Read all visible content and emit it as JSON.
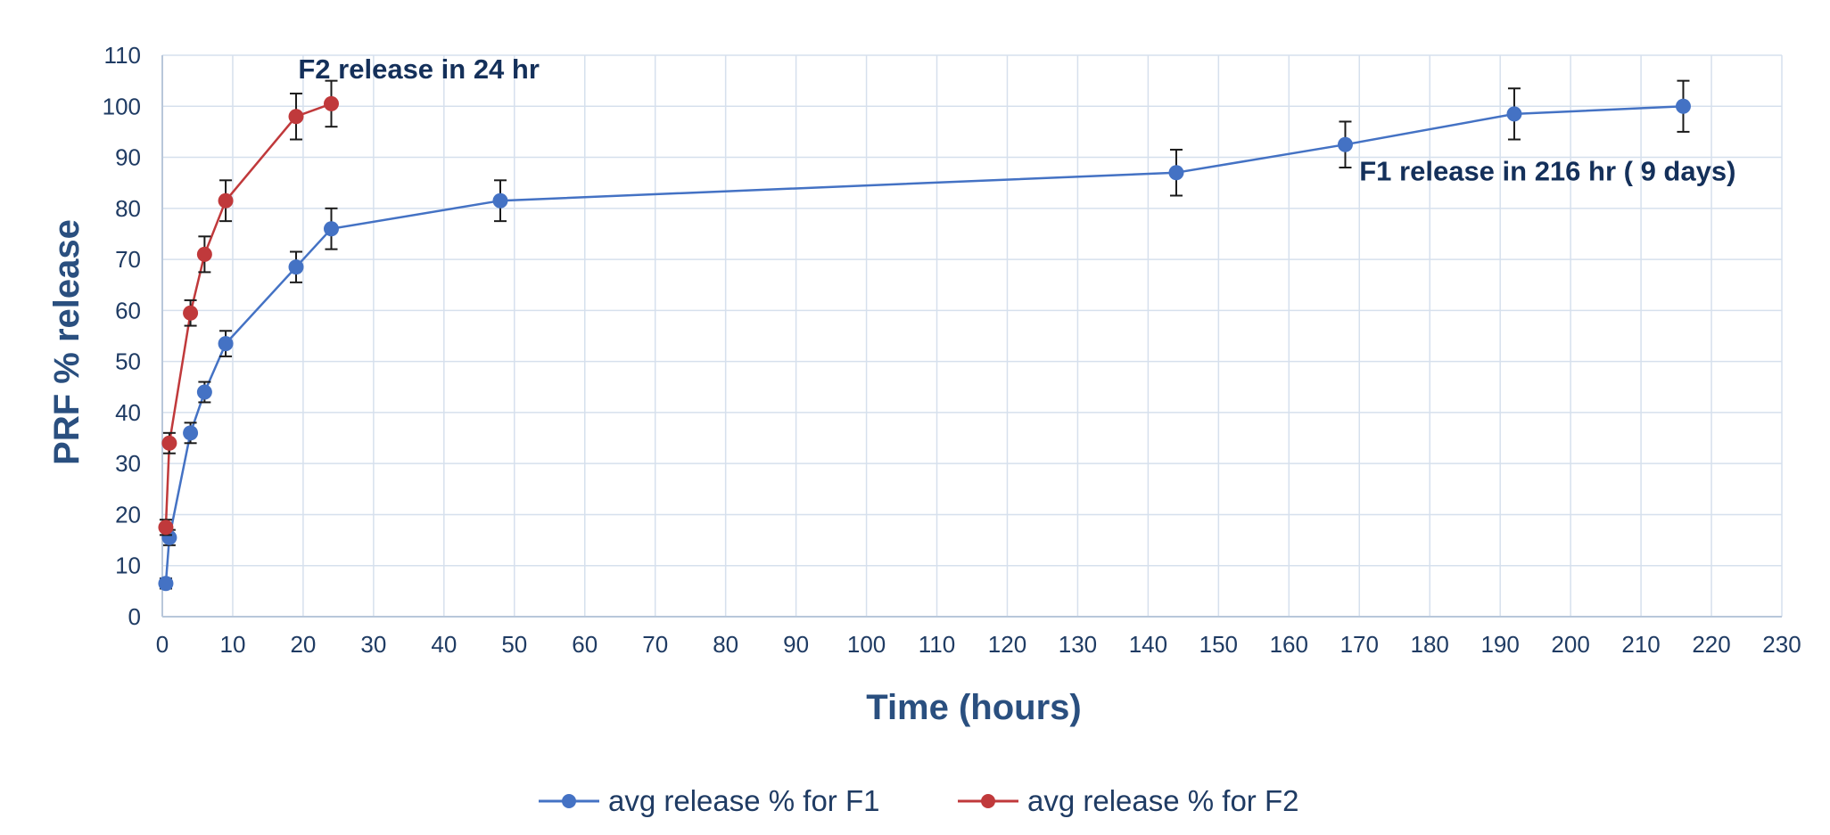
{
  "chart_data": {
    "type": "line",
    "title": "",
    "xlabel": "Time (hours)",
    "ylabel": "PRF % release",
    "xlim": [
      0,
      230
    ],
    "ylim": [
      0,
      110
    ],
    "x_ticks": [
      0,
      10,
      20,
      30,
      40,
      50,
      60,
      70,
      80,
      90,
      100,
      110,
      120,
      130,
      140,
      150,
      160,
      170,
      180,
      190,
      200,
      210,
      220,
      230
    ],
    "y_ticks": [
      0,
      10,
      20,
      30,
      40,
      50,
      60,
      70,
      80,
      90,
      100,
      110
    ],
    "grid": true,
    "legend_position": "bottom",
    "series": [
      {
        "name": "avg release % for F1",
        "color": "#4472c4",
        "x": [
          0.5,
          1,
          4,
          6,
          9,
          19,
          24,
          48,
          144,
          168,
          192,
          216
        ],
        "y": [
          6.5,
          15.5,
          36,
          44,
          53.5,
          68.5,
          76,
          81.5,
          87,
          92.5,
          98.5,
          100
        ],
        "error": [
          1,
          1.5,
          2,
          2,
          2.5,
          3,
          4,
          4,
          4.5,
          4.5,
          5,
          5
        ]
      },
      {
        "name": "avg release % for F2",
        "color": "#c0393b",
        "x": [
          0.5,
          1,
          4,
          6,
          9,
          19,
          24
        ],
        "y": [
          17.5,
          34,
          59.5,
          71,
          81.5,
          98,
          100.5
        ],
        "error": [
          1.5,
          2,
          2.5,
          3.5,
          4,
          4.5,
          4.5
        ]
      }
    ],
    "annotations": [
      {
        "text": "F2 release in 24 hr",
        "x": 19.3,
        "y": 105.5
      },
      {
        "text": "F1 release in 216 hr ( 9 days)",
        "x": 170,
        "y": 85.5
      }
    ]
  }
}
